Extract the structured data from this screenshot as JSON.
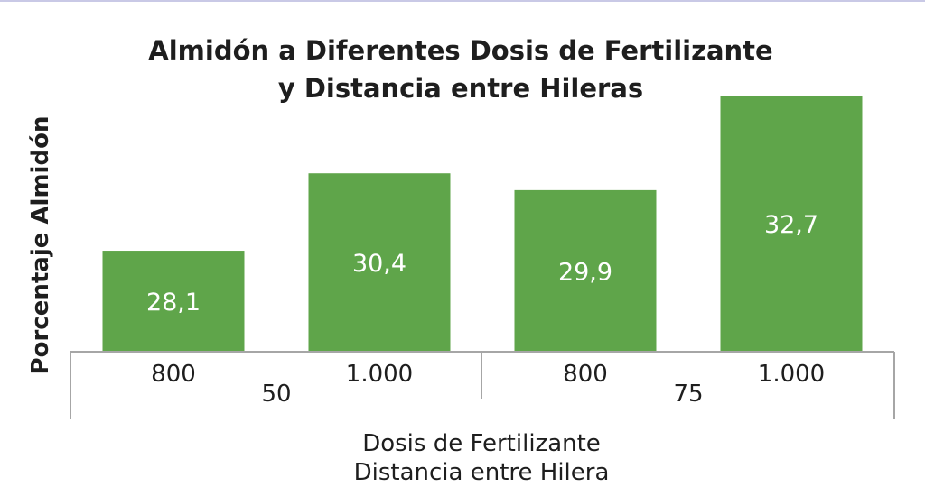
{
  "chart_data": {
    "type": "bar",
    "title": [
      "Almidón a Diferentes Dosis de Fertilizante",
      "y Distancia entre Hileras"
    ],
    "ylabel": "Porcentaje Almidón",
    "xlabel": [
      "Dosis de Fertilizante",
      "Distancia entre Hilera"
    ],
    "categories": [
      "800",
      "1.000",
      "800",
      "1.000"
    ],
    "groups": [
      {
        "label": "50",
        "members": 2
      },
      {
        "label": "75",
        "members": 2
      }
    ],
    "values": [
      28.1,
      30.4,
      29.9,
      32.7
    ],
    "value_labels": [
      "28,1",
      "30,4",
      "29,9",
      "32,7"
    ],
    "ylim": [
      25.1,
      33.3
    ],
    "grid": false,
    "legend": "none",
    "bar_color": "#5fa54a"
  }
}
